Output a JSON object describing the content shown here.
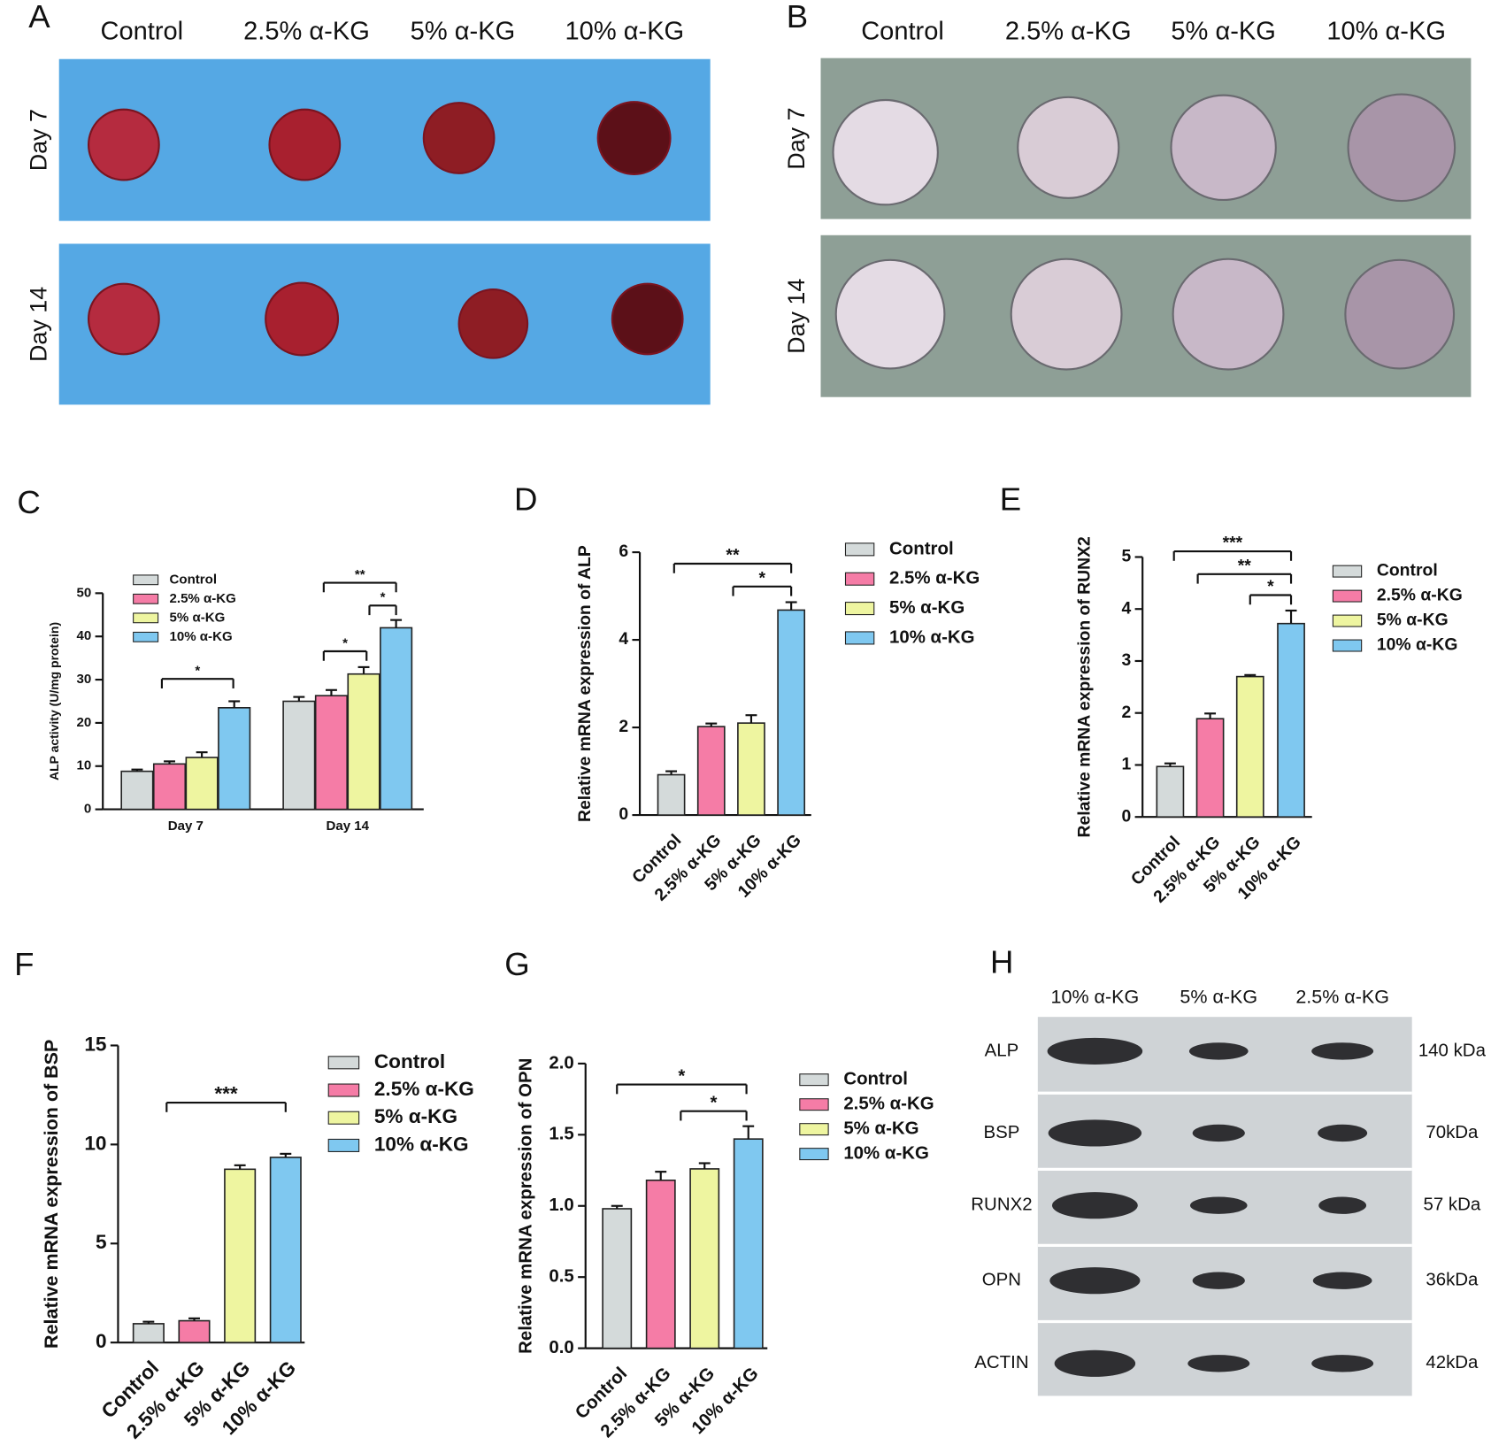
{
  "photos": [
    {
      "label": "A",
      "columns": [
        "Control",
        "2.5% α-KG",
        "5% α-KG",
        "10% α-KG"
      ],
      "rows": [
        "Day 7",
        "Day 14"
      ]
    },
    {
      "label": "B",
      "columns": [
        "Control",
        "2.5% α-KG",
        "5% α-KG",
        "10% α-KG"
      ],
      "rows": [
        "Day 7",
        "Day 14"
      ]
    }
  ],
  "blot": {
    "label": "H",
    "columns": [
      "10% α-KG",
      "5% α-KG",
      "2.5% α-KG"
    ],
    "rows": [
      {
        "protein": "ALP",
        "size": "140 kDa"
      },
      {
        "protein": "BSP",
        "size": "70kDa"
      },
      {
        "protein": "RUNX2",
        "size": "57 kDa"
      },
      {
        "protein": "OPN",
        "size": "36kDa"
      },
      {
        "protein": "ACTIN",
        "size": "42kDa"
      }
    ]
  },
  "chart_data": [
    {
      "type": "grouped_bar",
      "label": "C",
      "ylabel": "ALP activity (U/mg protein)",
      "categories": [
        "Day 7",
        "Day 14"
      ],
      "series": [
        {
          "name": "Control",
          "color": "#d4dada",
          "values": [
            8.8,
            25
          ],
          "errors": [
            0.4,
            1
          ]
        },
        {
          "name": "2.5% α-KG",
          "color": "#f57ca6",
          "values": [
            10.5,
            26.3
          ],
          "errors": [
            0.6,
            1.3
          ]
        },
        {
          "name": "5% α-KG",
          "color": "#eef5a0",
          "values": [
            12,
            31.3
          ],
          "errors": [
            1.2,
            1.6
          ]
        },
        {
          "name": "10% α-KG",
          "color": "#7fc8f0",
          "values": [
            23.5,
            42
          ],
          "errors": [
            1.5,
            1.8
          ]
        }
      ],
      "ylim": [
        0,
        50
      ],
      "yticks": [
        0,
        10,
        20,
        30,
        40,
        50
      ],
      "annotations": [
        "*",
        "*",
        "**",
        "*"
      ]
    },
    {
      "type": "bar",
      "label": "D",
      "ylabel": "Relative mRNA expression of ALP",
      "categories": [
        "Control",
        "2.5% α-KG",
        "5% α-KG",
        "10% α-KG"
      ],
      "colors": [
        "#d4dada",
        "#f57ca6",
        "#eef5a0",
        "#7fc8f0"
      ],
      "values": [
        0.92,
        2.02,
        2.1,
        4.68
      ],
      "errors": [
        0.08,
        0.07,
        0.18,
        0.18
      ],
      "ylim": [
        0,
        6
      ],
      "yticks": [
        0,
        2,
        4,
        6
      ],
      "annotations": [
        "**",
        "*"
      ]
    },
    {
      "type": "bar",
      "label": "E",
      "ylabel": "Relative mRNA expression of RUNX2",
      "categories": [
        "Control",
        "2.5% α-KG",
        "5% α-KG",
        "10% α-KG"
      ],
      "colors": [
        "#d4dada",
        "#f57ca6",
        "#eef5a0",
        "#7fc8f0"
      ],
      "values": [
        0.97,
        1.89,
        2.7,
        3.72
      ],
      "errors": [
        0.06,
        0.1,
        0.03,
        0.25
      ],
      "ylim": [
        0,
        5
      ],
      "yticks": [
        0,
        1,
        2,
        3,
        4,
        5
      ],
      "annotations": [
        "***",
        "**",
        "*"
      ]
    },
    {
      "type": "bar",
      "label": "F",
      "ylabel": "Relative mRNA expression of BSP",
      "categories": [
        "Control",
        "2.5% α-KG",
        "5% α-KG",
        "10% α-KG"
      ],
      "colors": [
        "#d4dada",
        "#f57ca6",
        "#eef5a0",
        "#7fc8f0"
      ],
      "values": [
        0.95,
        1.1,
        8.75,
        9.35
      ],
      "errors": [
        0.1,
        0.12,
        0.2,
        0.18
      ],
      "ylim": [
        0,
        15
      ],
      "yticks": [
        0,
        5,
        10,
        15
      ],
      "annotations": [
        "***"
      ]
    },
    {
      "type": "bar",
      "label": "G",
      "ylabel": "Relative mRNA expression of OPN",
      "categories": [
        "Control",
        "2.5% α-KG",
        "5% α-KG",
        "10% α-KG"
      ],
      "colors": [
        "#d4dada",
        "#f57ca6",
        "#eef5a0",
        "#7fc8f0"
      ],
      "values": [
        0.98,
        1.18,
        1.26,
        1.47
      ],
      "errors": [
        0.02,
        0.06,
        0.04,
        0.09
      ],
      "ylim": [
        0,
        2
      ],
      "yticks": [
        {
          "value": 0,
          "label": "0.0"
        },
        {
          "value": 0.5,
          "label": "0.5"
        },
        {
          "value": 1,
          "label": "1.0"
        },
        {
          "value": 1.5,
          "label": "1.5"
        },
        {
          "value": 2,
          "label": "2.0"
        }
      ],
      "annotations": [
        "*",
        "*"
      ]
    }
  ]
}
